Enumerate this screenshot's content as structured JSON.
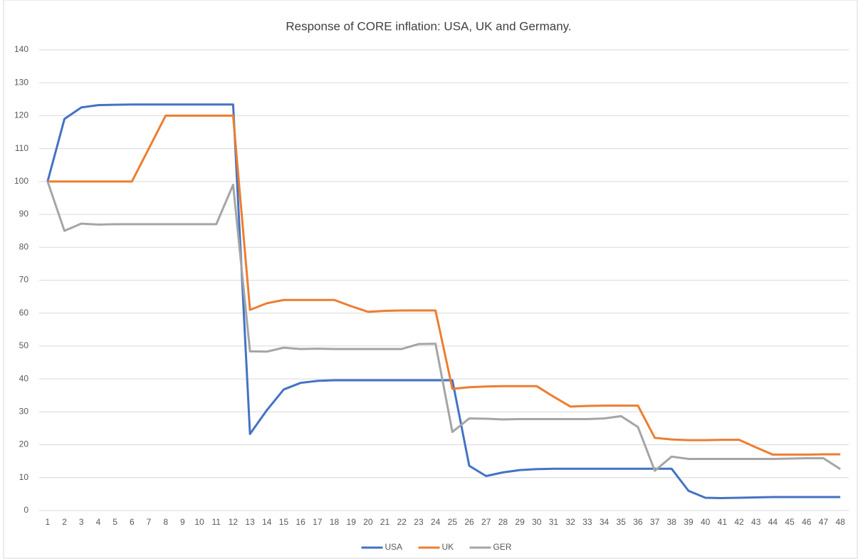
{
  "chart_data": {
    "type": "line",
    "title": "Response of CORE inflation: USA, UK and Germany.",
    "categories": [
      1,
      2,
      3,
      4,
      5,
      6,
      7,
      8,
      9,
      10,
      11,
      12,
      13,
      14,
      15,
      16,
      17,
      18,
      19,
      20,
      21,
      22,
      23,
      24,
      25,
      26,
      27,
      28,
      29,
      30,
      31,
      32,
      33,
      34,
      35,
      36,
      37,
      38,
      39,
      40,
      41,
      42,
      43,
      44,
      45,
      46,
      47,
      48
    ],
    "series": [
      {
        "name": "USA",
        "color": "#4472c4",
        "values": [
          100,
          119,
          122.5,
          123.2,
          123.3,
          123.4,
          123.4,
          123.4,
          123.4,
          123.4,
          123.4,
          123.4,
          23.3,
          30.5,
          36.8,
          38.8,
          39.4,
          39.6,
          39.6,
          39.6,
          39.6,
          39.6,
          39.6,
          39.6,
          39.6,
          13.6,
          10.5,
          11.6,
          12.3,
          12.6,
          12.7,
          12.7,
          12.7,
          12.7,
          12.7,
          12.7,
          12.7,
          12.7,
          6,
          3.9,
          3.8,
          3.9,
          4,
          4.1,
          4.1,
          4.1,
          4.1,
          4.1
        ]
      },
      {
        "name": "UK",
        "color": "#ed7d31",
        "values": [
          100,
          100,
          100,
          100,
          100,
          100,
          110,
          120,
          120,
          120,
          120,
          120,
          61,
          63,
          64,
          64,
          64,
          64,
          62.1,
          60.4,
          60.7,
          60.8,
          60.8,
          60.8,
          37,
          37.5,
          37.7,
          37.8,
          37.8,
          37.8,
          34.6,
          31.6,
          31.8,
          31.9,
          31.9,
          31.9,
          22.1,
          21.6,
          21.4,
          21.4,
          21.5,
          21.5,
          19.2,
          17,
          17,
          17,
          17.1,
          17.1
        ]
      },
      {
        "name": "GER",
        "color": "#a5a5a5",
        "values": [
          100,
          85,
          87.2,
          86.9,
          87,
          87,
          87,
          87,
          87,
          87,
          87,
          99,
          48.4,
          48.3,
          49.5,
          49.1,
          49.2,
          49.1,
          49.1,
          49.1,
          49.1,
          49.1,
          50.6,
          50.7,
          23.9,
          28,
          27.9,
          27.7,
          27.8,
          27.8,
          27.8,
          27.8,
          27.8,
          28,
          28.7,
          25.4,
          12.1,
          16.4,
          15.7,
          15.7,
          15.7,
          15.7,
          15.7,
          15.7,
          15.8,
          15.9,
          15.9,
          12.6
        ]
      }
    ],
    "ylim": [
      0,
      140
    ],
    "yticks": [
      0,
      10,
      20,
      30,
      40,
      50,
      60,
      70,
      80,
      90,
      100,
      110,
      120,
      130,
      140
    ],
    "grid": true,
    "legend": "bottom"
  }
}
